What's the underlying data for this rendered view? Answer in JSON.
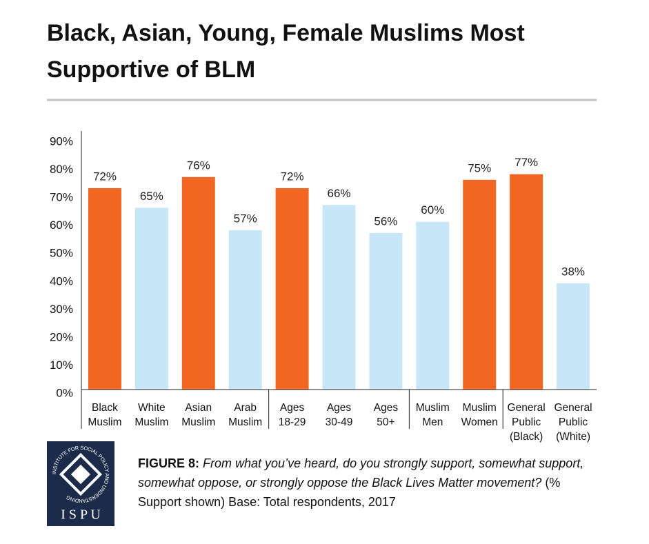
{
  "chart_data": {
    "type": "bar",
    "title": "Black, Asian, Young, Female Muslims Most Supportive of BLM",
    "categories": [
      "Black Muslim",
      "White Muslim",
      "Asian Muslim",
      "Arab Muslim",
      "Ages 18-29",
      "Ages 30-49",
      "Ages 50+",
      "Muslim Men",
      "Muslim Women",
      "General Public (Black)",
      "General Public (White)"
    ],
    "values": [
      72,
      65,
      76,
      57,
      72,
      66,
      56,
      60,
      75,
      77,
      38
    ],
    "value_labels": [
      "72%",
      "65%",
      "76%",
      "57%",
      "72%",
      "66%",
      "56%",
      "60%",
      "75%",
      "77%",
      "38%"
    ],
    "colors": [
      "#f26522",
      "#c7e7f9",
      "#f26522",
      "#c7e7f9",
      "#f26522",
      "#c7e7f9",
      "#c7e7f9",
      "#c7e7f9",
      "#f26522",
      "#f26522",
      "#c7e7f9"
    ],
    "ylim": [
      0,
      90
    ],
    "yticks": [
      {
        "value": 0,
        "label": "0%"
      },
      {
        "value": 10,
        "label": "10%"
      },
      {
        "value": 20,
        "label": "20%"
      },
      {
        "value": 30,
        "label": "30%"
      },
      {
        "value": 40,
        "label": "40%"
      },
      {
        "value": 50,
        "label": "50%"
      },
      {
        "value": 60,
        "label": "60%"
      },
      {
        "value": 70,
        "label": "70%"
      },
      {
        "value": 80,
        "label": "80%"
      },
      {
        "value": 90,
        "label": "90%"
      }
    ]
  },
  "caption": {
    "label": "FIGURE 8:",
    "question": "From what you’ve heard, do you strongly support, somewhat support, somewhat oppose, or strongly oppose the Black Lives Matter movement?",
    "note": "(% Support shown) Base: Total respondents, 2017"
  },
  "logo": {
    "name": "I S P U",
    "ring": "INSTITUTE FOR SOCIAL POLICY AND UNDERSTANDING"
  }
}
